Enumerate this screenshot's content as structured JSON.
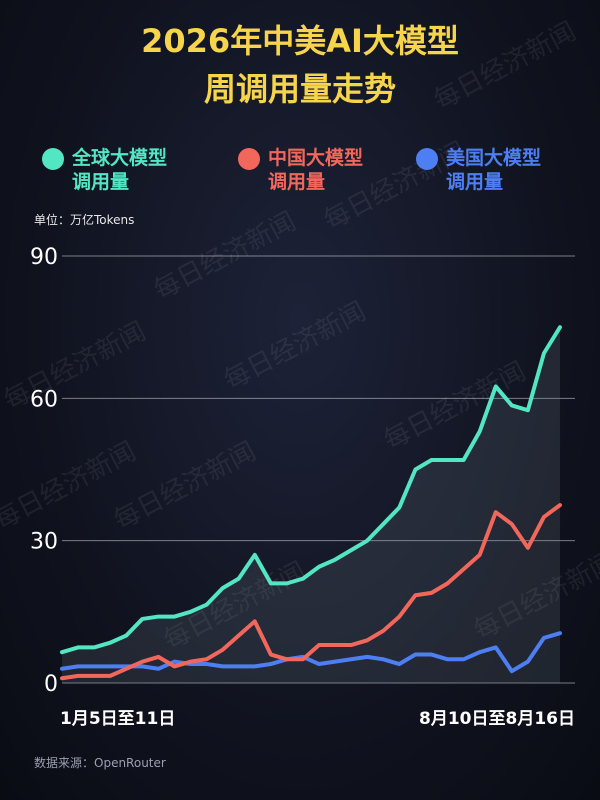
{
  "chart_data": {
    "type": "line",
    "title": [
      "2026年中美AI大模型",
      "周调用量走势"
    ],
    "unit_label": "单位：万亿Tokens",
    "source": "数据来源：OpenRouter",
    "watermark": "每日经济新闻",
    "categories": [
      "1月5日至11日",
      null,
      null,
      null,
      null,
      null,
      null,
      null,
      null,
      null,
      null,
      null,
      null,
      null,
      null,
      null,
      null,
      null,
      null,
      null,
      null,
      null,
      null,
      null,
      null,
      null,
      null,
      null,
      null,
      null,
      null,
      "8月10日至8月16日"
    ],
    "series": [
      {
        "name": "全球大模型调用量",
        "color": "#52e6c3",
        "values": [
          6.5,
          7.5,
          7.5,
          8.5,
          10,
          13.5,
          14,
          14,
          15,
          16.5,
          20,
          22,
          27,
          21,
          21,
          22,
          24.5,
          26,
          28,
          30,
          33.5,
          37,
          45,
          47,
          47,
          47,
          53,
          62.5,
          58.5,
          57.5,
          69.5,
          75
        ]
      },
      {
        "name": "中国大模型调用量",
        "color": "#f2675c",
        "values": [
          1,
          1.5,
          1.5,
          1.5,
          3,
          4.5,
          5.5,
          3.5,
          4.5,
          5,
          7,
          10,
          13,
          6,
          5,
          5,
          8,
          8,
          8,
          9,
          11,
          14,
          18.5,
          19,
          21,
          24,
          27,
          36,
          33.5,
          28.5,
          35,
          37.5
        ]
      },
      {
        "name": "美国大模型调用量",
        "color": "#4d7ff2",
        "values": [
          3,
          3.5,
          3.5,
          3.5,
          3.5,
          3.5,
          3,
          4.5,
          4,
          4,
          3.5,
          3.5,
          3.5,
          4,
          5,
          5.5,
          4,
          4.5,
          5,
          5.5,
          5,
          4,
          6,
          6,
          5,
          5,
          6.5,
          7.5,
          2.5,
          4.5,
          9.5,
          10.5
        ]
      }
    ],
    "ylim": [
      0,
      90
    ],
    "yticks": [
      0,
      30,
      60,
      90
    ],
    "grid": true
  }
}
